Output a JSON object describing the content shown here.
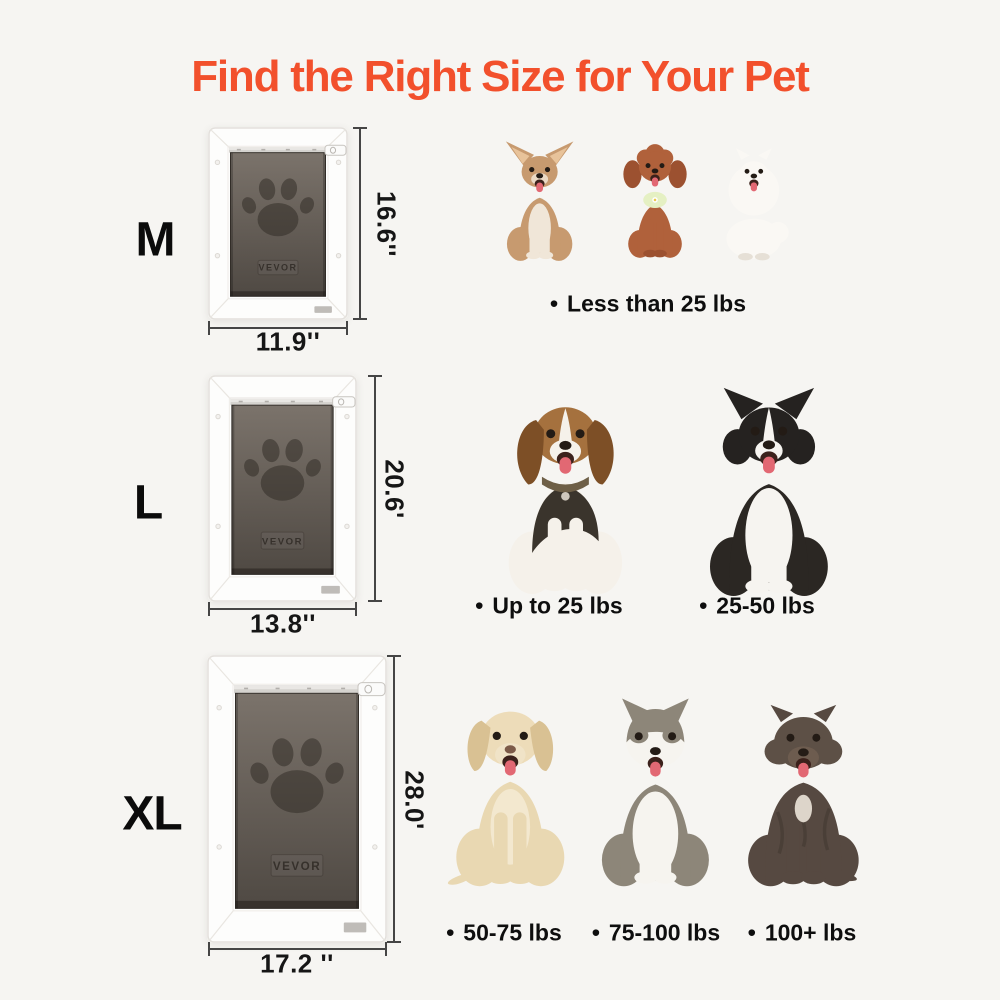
{
  "title": "Find the Right Size for Your Pet",
  "title_color": "#f2502c",
  "background_color": "#f6f5f2",
  "palette": {
    "dim_line": "#454545",
    "text": "#0e0e0e",
    "tongue": "#e26873",
    "mouth": "#3b211b",
    "eye": "#231b15",
    "nose": "#241c16",
    "door_frame": "#fdfdfc",
    "door_flap_top": "#7b736b",
    "door_flap_bottom": "#4f4943",
    "door_paw": "#2e2923"
  },
  "rows": [
    {
      "size": "M",
      "door": {
        "brand": "VEVOR",
        "height_label": "16.6''",
        "width_label": "11.9''"
      },
      "dogs": [
        {
          "breed": "chihuahua",
          "colors": {
            "body": "#c79a6f",
            "ear": "#e8c39a",
            "chest": "#f0e6d8",
            "muzzle": "#ead9c5"
          }
        },
        {
          "breed": "poodle",
          "colors": {
            "body": "#b0613b",
            "ear": "#9c5130",
            "accent": "#e5f0c3"
          }
        },
        {
          "breed": "pomeranian",
          "colors": {
            "body": "#faf8f4",
            "shade": "#e6e0d6"
          }
        }
      ],
      "weights": [
        {
          "bullet": "•",
          "text": "Less than 25 lbs"
        }
      ]
    },
    {
      "size": "L",
      "door": {
        "brand": "VEVOR",
        "height_label": "20.6'",
        "width_label": "13.8''"
      },
      "dogs": [
        {
          "breed": "beagle",
          "colors": {
            "head": "#a5713e",
            "ear": "#7d4f26",
            "saddle": "#3a342c",
            "chest": "#f5f1ea",
            "blaze": "#f5f1ea",
            "collar": "#6e5f47"
          }
        },
        {
          "breed": "border-collie",
          "colors": {
            "body": "#2b2723",
            "head": "#252220",
            "chest": "#f6f4f0"
          }
        }
      ],
      "weights": [
        {
          "bullet": "•",
          "text": "Up to 25 lbs"
        },
        {
          "bullet": "•",
          "text": "25-50 lbs"
        }
      ]
    },
    {
      "size": "XL",
      "door": {
        "brand": "VEVOR",
        "height_label": "28.0'",
        "width_label": "17.2 ''"
      },
      "dogs": [
        {
          "breed": "labrador",
          "colors": {
            "body": "#e9d8b2",
            "head": "#eddcb9",
            "ear": "#d9c193",
            "chest": "#f3e8cf",
            "muzzle": "#f0e3c7",
            "nose": "#7c5a48"
          }
        },
        {
          "breed": "malamute",
          "colors": {
            "mantle": "#8d8679",
            "chest": "#f6f4ef"
          }
        },
        {
          "breed": "pitbull",
          "colors": {
            "body": "#564941",
            "head": "#5d5046",
            "muzzle": "#6d5c4f",
            "brindle": "#3c332c",
            "patch": "#ddd5ca"
          }
        }
      ],
      "weights": [
        {
          "bullet": "•",
          "text": "50-75 lbs"
        },
        {
          "bullet": "•",
          "text": "75-100 lbs"
        },
        {
          "bullet": "•",
          "text": "100+ lbs"
        }
      ]
    }
  ]
}
